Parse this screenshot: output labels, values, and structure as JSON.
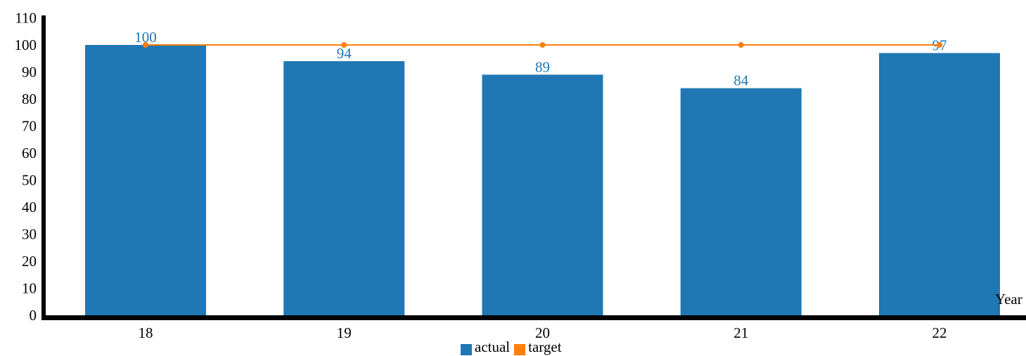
{
  "chart_data": {
    "type": "bar",
    "categories": [
      "18",
      "19",
      "20",
      "21",
      "22"
    ],
    "series": [
      {
        "name": "actual",
        "kind": "bar",
        "color": "#1f77b4",
        "values": [
          100,
          94,
          89,
          84,
          97
        ]
      },
      {
        "name": "target",
        "kind": "line",
        "color": "#ff7f0e",
        "values": [
          100,
          100,
          100,
          100,
          100
        ]
      }
    ],
    "data_labels": [
      "100",
      "94",
      "89",
      "84",
      "97"
    ],
    "xlabel": "Year",
    "ylabel": "",
    "ylim": [
      0,
      110
    ],
    "yticks": [
      "0",
      "10",
      "20",
      "30",
      "40",
      "50",
      "60",
      "70",
      "80",
      "90",
      "100",
      "110"
    ],
    "grid": false,
    "legend_position": "bottom-center"
  }
}
